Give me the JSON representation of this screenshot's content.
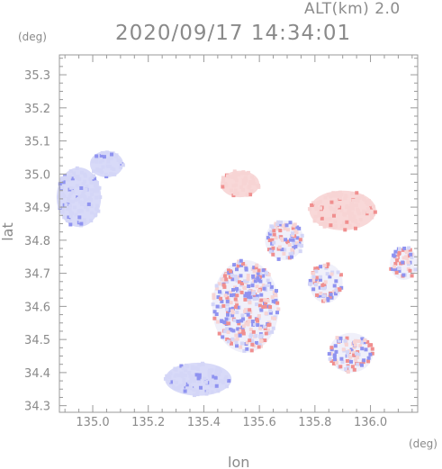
{
  "header": {
    "altitude_label": "ALT(km) 2.0",
    "timestamp": "2020/09/17 14:34:01"
  },
  "axes": {
    "y_unit": "(deg)",
    "x_unit": "(deg)",
    "x_title": "lon",
    "y_title": "lat"
  },
  "chart_data": {
    "type": "heatmap",
    "title": "2020/09/17 14:34:01",
    "subtitle": "ALT(km) 2.0",
    "xlabel": "lon",
    "ylabel": "lat",
    "xlim": [
      134.88,
      136.17
    ],
    "ylim": [
      34.28,
      35.36
    ],
    "x_ticks": [
      "135.0",
      "135.2",
      "135.4",
      "135.6",
      "135.8",
      "136.0"
    ],
    "y_ticks": [
      "34.3",
      "34.4",
      "34.5",
      "34.6",
      "34.7",
      "34.8",
      "34.9",
      "35.0",
      "35.1",
      "35.2",
      "35.3"
    ],
    "x_tick_values": [
      135.0,
      135.2,
      135.4,
      135.6,
      135.8,
      136.0
    ],
    "y_tick_values": [
      34.3,
      34.4,
      34.5,
      34.6,
      34.7,
      34.8,
      34.9,
      35.0,
      35.1,
      35.2,
      35.3
    ],
    "colors": {
      "negative": "#8f93f0",
      "negative_light": "#d4d6f7",
      "positive": "#f08f8f",
      "positive_light": "#f7d4d4",
      "axis": "#9a9a9a"
    },
    "regions": [
      {
        "name": "northwest-blue-patch",
        "sign": "negative",
        "lon": 134.95,
        "lat": 34.93,
        "rlon": 0.08,
        "rlat": 0.09
      },
      {
        "name": "northwest-blue-tail",
        "sign": "negative",
        "lon": 135.05,
        "lat": 35.03,
        "rlon": 0.06,
        "rlat": 0.04
      },
      {
        "name": "north-red-patch",
        "sign": "positive",
        "lon": 135.53,
        "lat": 34.97,
        "rlon": 0.07,
        "rlat": 0.04
      },
      {
        "name": "northeast-red-patch",
        "sign": "positive",
        "lon": 135.9,
        "lat": 34.89,
        "rlon": 0.12,
        "rlat": 0.06
      },
      {
        "name": "east-mixed-patch",
        "sign": "mixed",
        "lon": 136.12,
        "lat": 34.73,
        "rlon": 0.05,
        "rlat": 0.05
      },
      {
        "name": "center-mixed-patch",
        "sign": "mixed",
        "lon": 135.55,
        "lat": 34.6,
        "rlon": 0.12,
        "rlat": 0.14
      },
      {
        "name": "ring-mixed-patch",
        "sign": "mixed",
        "lon": 135.69,
        "lat": 34.8,
        "rlon": 0.07,
        "rlat": 0.06
      },
      {
        "name": "right-mixed-patch",
        "sign": "mixed",
        "lon": 135.84,
        "lat": 34.67,
        "rlon": 0.06,
        "rlat": 0.06
      },
      {
        "name": "southeast-mixed-patch",
        "sign": "mixed",
        "lon": 135.93,
        "lat": 34.46,
        "rlon": 0.08,
        "rlat": 0.06
      },
      {
        "name": "southwest-blue-patch",
        "sign": "negative",
        "lon": 135.38,
        "lat": 34.38,
        "rlon": 0.12,
        "rlat": 0.05
      }
    ]
  }
}
